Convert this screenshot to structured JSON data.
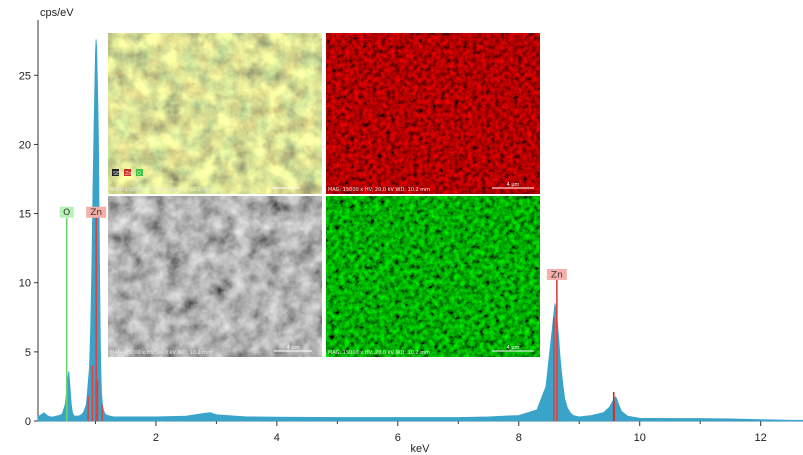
{
  "chart_data": {
    "type": "line",
    "title": "",
    "xlabel": "keV",
    "ylabel": "cps/eV",
    "xlim": [
      0.05,
      12.7
    ],
    "ylim": [
      0,
      29
    ],
    "xticks": [
      2,
      4,
      6,
      8,
      10,
      12
    ],
    "yticks": [
      0,
      5,
      10,
      15,
      20,
      25
    ],
    "grid": false,
    "legend": "none",
    "colors": {
      "spectrum": "#3aa3c9",
      "O": "#6dd46d",
      "Zn": "#e0413c",
      "O_label_bg": "#b6f2b6",
      "Zn_label_bg": "#f6b0ab",
      "minor_peak": "#d12a25"
    },
    "series": [
      {
        "x": [
          0.05,
          0.15,
          0.2,
          0.25,
          0.3,
          0.35,
          0.4,
          0.45,
          0.5,
          0.52,
          0.54,
          0.56,
          0.58,
          0.6,
          0.62,
          0.64,
          0.66,
          0.7,
          0.75,
          0.8,
          0.85,
          0.9,
          0.92,
          0.94,
          0.96,
          0.98,
          1.0,
          1.01,
          1.02,
          1.03,
          1.04,
          1.05,
          1.06,
          1.07,
          1.08,
          1.09,
          1.1,
          1.12,
          1.14,
          1.16,
          1.2,
          1.25,
          1.3,
          1.5,
          2.0,
          2.5,
          2.8,
          2.9,
          3.0,
          3.5,
          4.0,
          5.0,
          6.0,
          7.0,
          7.5,
          8.0,
          8.3,
          8.45,
          8.5,
          8.55,
          8.58,
          8.6,
          8.62,
          8.64,
          8.66,
          8.68,
          8.7,
          8.73,
          8.76,
          8.8,
          8.85,
          8.9,
          9.0,
          9.2,
          9.4,
          9.5,
          9.55,
          9.58,
          9.6,
          9.62,
          9.65,
          9.7,
          9.8,
          10.0,
          10.5,
          11.0,
          11.5,
          12.0,
          12.5,
          12.7
        ],
        "values": [
          0.3,
          0.6,
          0.4,
          0.3,
          0.3,
          0.35,
          0.4,
          0.5,
          1.2,
          2.0,
          3.0,
          3.6,
          2.4,
          1.2,
          0.6,
          0.4,
          0.35,
          0.35,
          0.4,
          0.6,
          1.2,
          3.8,
          6.5,
          11.0,
          17.0,
          22.0,
          26.5,
          27.6,
          27.0,
          25.0,
          23.0,
          20.0,
          15.0,
          10.0,
          6.0,
          3.5,
          2.0,
          1.0,
          0.7,
          0.5,
          0.4,
          0.35,
          0.3,
          0.3,
          0.3,
          0.35,
          0.55,
          0.6,
          0.45,
          0.3,
          0.28,
          0.25,
          0.25,
          0.25,
          0.3,
          0.4,
          0.8,
          2.5,
          4.5,
          6.5,
          7.8,
          8.5,
          8.0,
          7.0,
          6.0,
          4.8,
          3.8,
          2.6,
          1.6,
          1.0,
          0.6,
          0.4,
          0.3,
          0.4,
          0.6,
          1.0,
          1.4,
          1.6,
          1.75,
          1.6,
          1.2,
          0.7,
          0.35,
          0.2,
          0.18,
          0.18,
          0.15,
          0.1,
          0.05,
          0.05
        ]
      }
    ],
    "element_lines": [
      {
        "label": "O",
        "energy": 0.525,
        "height": 14.7,
        "color": "#6dd46d"
      },
      {
        "label": "Zn",
        "energy": 1.012,
        "height": 14.7,
        "color": "#e0413c"
      },
      {
        "label": "Zn",
        "energy": 8.63,
        "height": 10.2,
        "color": "#e0413c"
      },
      {
        "label": "",
        "energy": 9.57,
        "height": 2.1,
        "color": "#d12a25"
      }
    ],
    "zn_small_lines": [
      {
        "energy": 0.88,
        "height": 1.8
      },
      {
        "energy": 0.95,
        "height": 4.0
      },
      {
        "energy": 1.035,
        "height": 3.0
      },
      {
        "energy": 1.11,
        "height": 1.2
      },
      {
        "energy": 8.58,
        "height": 7.5
      },
      {
        "energy": 9.58,
        "height": 1.4
      }
    ],
    "inset_panels": [
      {
        "name": "combined-map",
        "caption": "MAG: 15000 x  HV: 20.0 kV  WD: 10.2 mm",
        "scale": "",
        "legend_items": [
          "SE",
          "Zn",
          "O"
        ]
      },
      {
        "name": "zn-map",
        "caption": "MAG: 15000 x  HV: 20.0 kV  WD: 10.2 mm",
        "scale": "4 µm"
      },
      {
        "name": "se-image",
        "caption": "MAG: 15000 x  HV: 20.0 kV  WD: 10.2 mm",
        "scale": "4 µm"
      },
      {
        "name": "o-map",
        "caption": "MAG: 15000 x  HV: 20.0 kV  WD: 10.2 mm",
        "scale": "4 µm"
      }
    ]
  }
}
